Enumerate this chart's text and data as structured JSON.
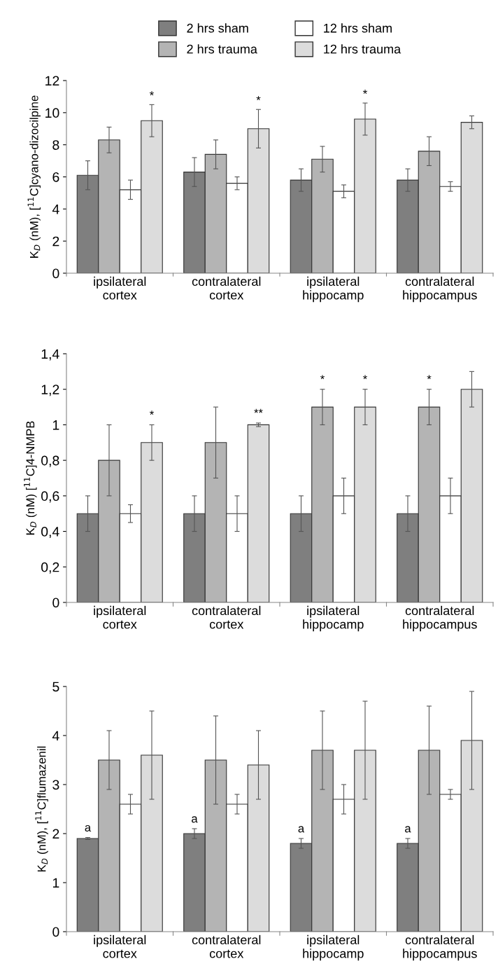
{
  "chart_data": [
    {
      "type": "bar",
      "ylabel": "K$_{D}$ (nM), [$^{11}$C]cyano-dizocilpine",
      "categories": [
        "ipsilateral\ncortex",
        "contralateral\ncortex",
        "ipsilateral\nhippocamp",
        "contralateral\nhippocampus"
      ],
      "ylim": [
        0,
        12
      ],
      "yticks": [
        0,
        2,
        4,
        6,
        8,
        10,
        12
      ],
      "legend": "top",
      "grid": false,
      "series": [
        {
          "name": "2 hrs sham",
          "color": "#7f7f7f",
          "values": [
            6.1,
            6.3,
            5.8,
            5.8
          ],
          "errors": [
            0.9,
            0.9,
            0.7,
            0.7
          ]
        },
        {
          "name": "2 hrs trauma",
          "color": "#b4b4b4",
          "values": [
            8.3,
            7.4,
            7.1,
            7.6
          ],
          "errors": [
            0.8,
            0.9,
            0.8,
            0.9
          ]
        },
        {
          "name": "12 hrs sham",
          "color": "#ffffff",
          "values": [
            5.2,
            5.6,
            5.1,
            5.4
          ],
          "errors": [
            0.6,
            0.4,
            0.4,
            0.3
          ]
        },
        {
          "name": "12 hrs trauma",
          "color": "#dcdcdc",
          "values": [
            9.5,
            9.0,
            9.6,
            9.4
          ],
          "errors": [
            1.0,
            1.2,
            1.0,
            0.4
          ],
          "value_labels": [
            "*",
            "*",
            "*",
            null
          ]
        }
      ]
    },
    {
      "type": "bar",
      "ylabel": "K$_{D}$ (nM) [$^{11}$C]4-NMPB",
      "categories": [
        "ipsilateral\ncortex",
        "contralateral\ncortex",
        "ipsilateral\nhippocamp",
        "contralateral\nhippocampus"
      ],
      "ylim": [
        0,
        1.4
      ],
      "yticks": [
        0,
        {
          "value": 0.2,
          "label": "0,2"
        },
        {
          "value": 0.4,
          "label": "0,4"
        },
        {
          "value": 0.6,
          "label": "0,6"
        },
        {
          "value": 0.8,
          "label": "0,8"
        },
        1,
        {
          "value": 1.2,
          "label": "1,2"
        },
        {
          "value": 1.4,
          "label": "1,4"
        }
      ],
      "grid": false,
      "series": [
        {
          "color": "#7f7f7f",
          "values": [
            0.5,
            0.5,
            0.5,
            0.5
          ],
          "errors": [
            0.1,
            0.1,
            0.1,
            0.1
          ]
        },
        {
          "color": "#b4b4b4",
          "values": [
            0.8,
            0.9,
            1.1,
            1.1
          ],
          "errors": [
            0.2,
            0.2,
            0.1,
            0.1
          ],
          "value_labels": [
            null,
            null,
            "*",
            "*"
          ]
        },
        {
          "color": "#ffffff",
          "values": [
            0.5,
            0.5,
            0.6,
            0.6
          ],
          "errors": [
            0.05,
            0.1,
            0.1,
            0.1
          ]
        },
        {
          "color": "#dcdcdc",
          "values": [
            0.9,
            1.0,
            1.1,
            1.2
          ],
          "errors": [
            0.1,
            0.01,
            0.1,
            0.1
          ],
          "value_labels": [
            "*",
            "**",
            "*",
            null
          ]
        }
      ]
    },
    {
      "type": "bar",
      "ylabel": "K$_{D}$ (nM), [$^{11}$C]flumazenil",
      "categories": [
        "ipsilateral\ncortex",
        "contralateral\ncortex",
        "ipsilateral\nhippocamp",
        "contralateral\nhippocampus"
      ],
      "ylim": [
        0,
        5
      ],
      "yticks": [
        0,
        1,
        2,
        3,
        4,
        5
      ],
      "grid": false,
      "series": [
        {
          "color": "#7f7f7f",
          "values": [
            1.9,
            2.0,
            1.8,
            1.8
          ],
          "errors": [
            0.02,
            0.1,
            0.1,
            0.1
          ],
          "value_labels": [
            "a",
            "a",
            "a",
            "a"
          ]
        },
        {
          "color": "#b4b4b4",
          "values": [
            3.5,
            3.5,
            3.7,
            3.7
          ],
          "errors": [
            0.6,
            0.9,
            0.8,
            0.9
          ]
        },
        {
          "color": "#ffffff",
          "values": [
            2.6,
            2.6,
            2.7,
            2.8
          ],
          "errors": [
            0.2,
            0.2,
            0.3,
            0.1
          ]
        },
        {
          "color": "#dcdcdc",
          "values": [
            3.6,
            3.4,
            3.7,
            3.9
          ],
          "errors": [
            0.9,
            0.7,
            1.0,
            1.0
          ]
        }
      ]
    }
  ]
}
